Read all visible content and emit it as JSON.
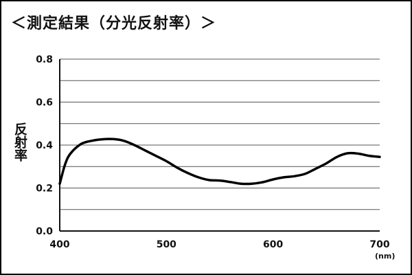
{
  "chart_data": {
    "type": "line",
    "title": "＜測定結果（分光反射率）＞",
    "xlabel": "(nm)",
    "ylabel": "反射率",
    "xlim": [
      400,
      700
    ],
    "ylim": [
      0.0,
      0.8
    ],
    "x_ticks": [
      "400",
      "500",
      "600",
      "700"
    ],
    "y_ticks": [
      "0.0",
      "0.2",
      "0.4",
      "0.6",
      "0.8"
    ],
    "grid": true,
    "legend": "none",
    "line_color": "#000000",
    "series": [
      {
        "x": [
          400,
          405,
          410,
          420,
          430,
          440,
          450,
          460,
          470,
          480,
          490,
          500,
          510,
          520,
          530,
          540,
          550,
          560,
          570,
          580,
          590,
          600,
          610,
          620,
          630,
          640,
          650,
          660,
          670,
          680,
          690,
          700
        ],
        "values": [
          0.22,
          0.31,
          0.36,
          0.405,
          0.42,
          0.427,
          0.428,
          0.42,
          0.4,
          0.375,
          0.35,
          0.325,
          0.295,
          0.27,
          0.25,
          0.237,
          0.235,
          0.228,
          0.22,
          0.22,
          0.227,
          0.24,
          0.25,
          0.255,
          0.266,
          0.29,
          0.315,
          0.345,
          0.362,
          0.36,
          0.35,
          0.345
        ]
      }
    ]
  }
}
